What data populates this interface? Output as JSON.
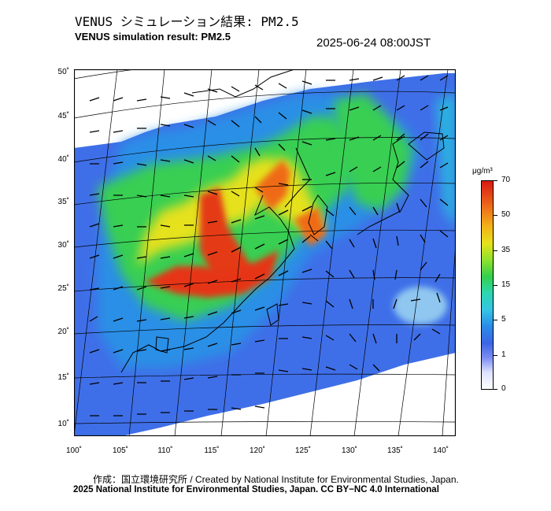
{
  "header": {
    "title_jp": "VENUS シミュレーション結果: PM2.5",
    "title_en": "VENUS simulation result: PM2.5",
    "timestamp": "2025-06-24 08:00JST"
  },
  "map": {
    "lat_labels": [
      "50˚",
      "45˚",
      "40˚",
      "35˚",
      "30˚",
      "25˚",
      "20˚",
      "15˚",
      "10˚"
    ],
    "lon_labels": [
      "100˚",
      "105˚",
      "110˚",
      "115˚",
      "120˚",
      "125˚",
      "130˚",
      "135˚",
      "140˚"
    ],
    "lat_range": [
      9,
      51
    ],
    "lon_range": [
      100,
      141
    ]
  },
  "colorbar": {
    "unit": "μg/m³",
    "labels": [
      "70",
      "50",
      "35",
      "15",
      "5",
      "1",
      "0"
    ],
    "colors": [
      "#d81a14",
      "#ee6a1a",
      "#f3b21a",
      "#34cf4c",
      "#2a8be8",
      "#7b8cf2",
      "#ffffff"
    ]
  },
  "footer": {
    "credit": "作成：国立環境研究所 / Created by National Institute for Environmental Studies, Japan.",
    "license": "2025 National Institute for Environmental Studies, Japan. CC BY−NC 4.0 International"
  }
}
